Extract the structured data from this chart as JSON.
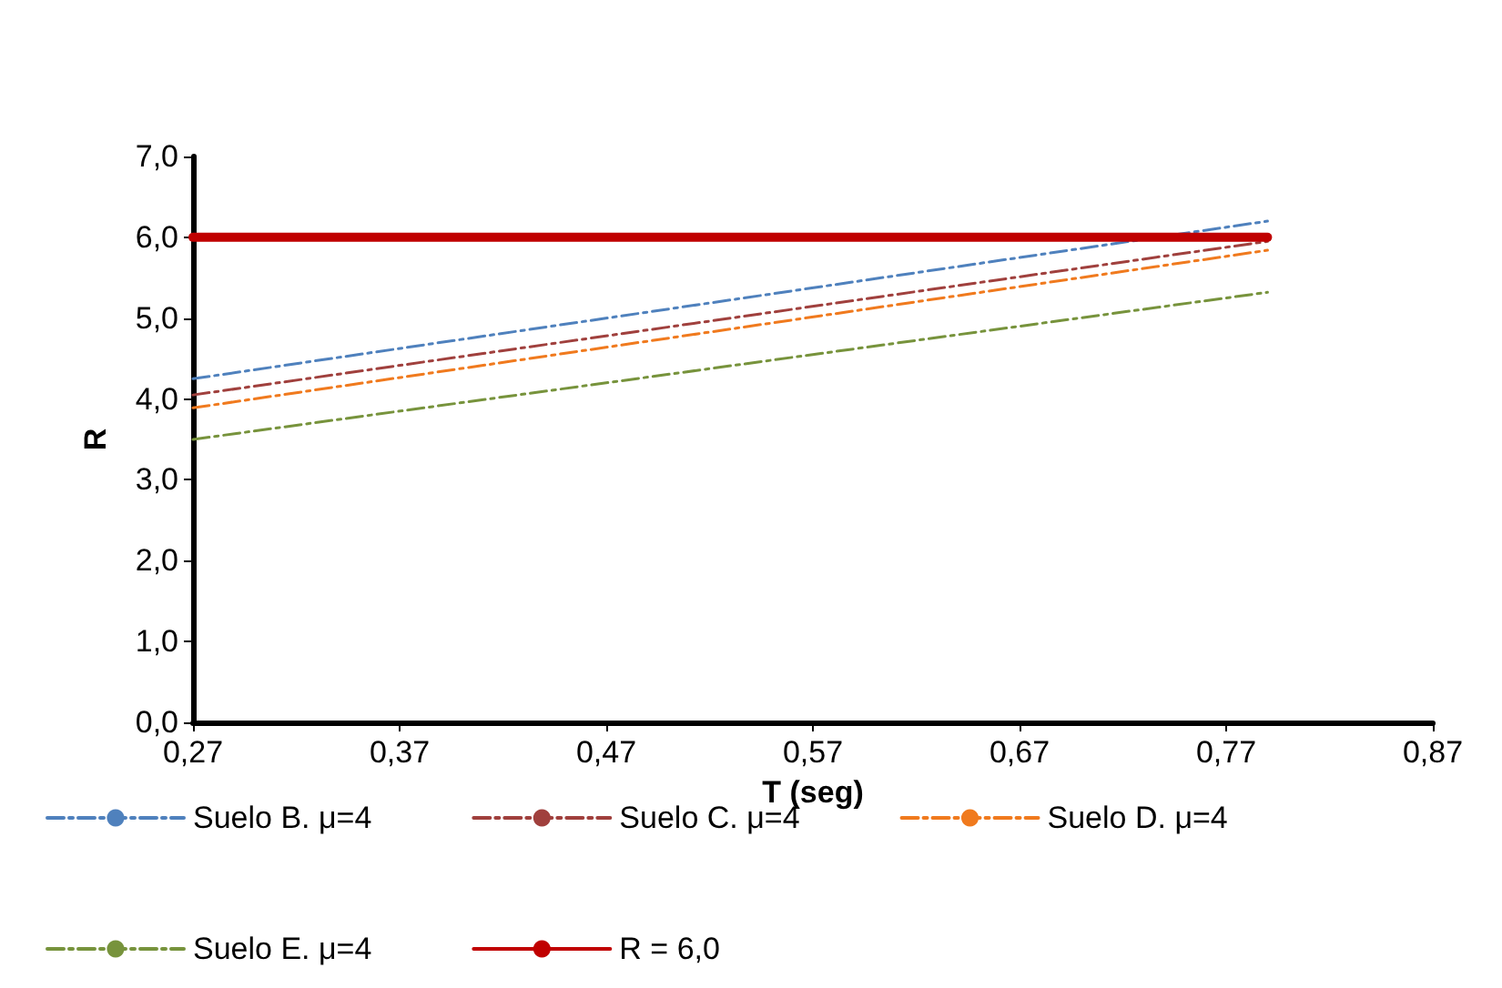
{
  "chart_data": {
    "type": "line",
    "xlabel": "T (seg)",
    "ylabel": "R",
    "xlim": [
      0.27,
      0.87
    ],
    "xticks": [
      {
        "value": 0.27,
        "label": "0,27"
      },
      {
        "value": 0.37,
        "label": "0,37"
      },
      {
        "value": 0.47,
        "label": "0,47"
      },
      {
        "value": 0.57,
        "label": "0,57"
      },
      {
        "value": 0.67,
        "label": "0,67"
      },
      {
        "value": 0.77,
        "label": "0,77"
      },
      {
        "value": 0.87,
        "label": "0,87"
      }
    ],
    "ylim": [
      0,
      7
    ],
    "yticks": [
      {
        "value": 0,
        "label": "0,0"
      },
      {
        "value": 1,
        "label": "1,0"
      },
      {
        "value": 2,
        "label": "2,0"
      },
      {
        "value": 3,
        "label": "3,0"
      },
      {
        "value": 4,
        "label": "4,0"
      },
      {
        "value": 5,
        "label": "5,0"
      },
      {
        "value": 6,
        "label": "6,0"
      },
      {
        "value": 7,
        "label": "7,0"
      }
    ],
    "x": [
      0.27,
      0.79
    ],
    "series": [
      {
        "name": "Suelo B. μ=4",
        "color": "#4f81bd",
        "values": [
          4.25,
          6.2
        ],
        "line_style": "dashed"
      },
      {
        "name": "Suelo C. μ=4",
        "color": "#a0403d",
        "values": [
          4.05,
          5.95
        ],
        "line_style": "dashed"
      },
      {
        "name": "Suelo D. μ=4",
        "color": "#f07a1e",
        "values": [
          3.89,
          5.84
        ],
        "line_style": "dashed"
      },
      {
        "name": "Suelo E. μ=4",
        "color": "#77933c",
        "values": [
          3.5,
          5.32
        ],
        "line_style": "dashed"
      },
      {
        "name": "R = 6,0",
        "color": "#c00000",
        "values": [
          6.0,
          6.0
        ],
        "line_style": "solid"
      }
    ],
    "grid": false,
    "legend": "bottom",
    "marker": "none"
  }
}
